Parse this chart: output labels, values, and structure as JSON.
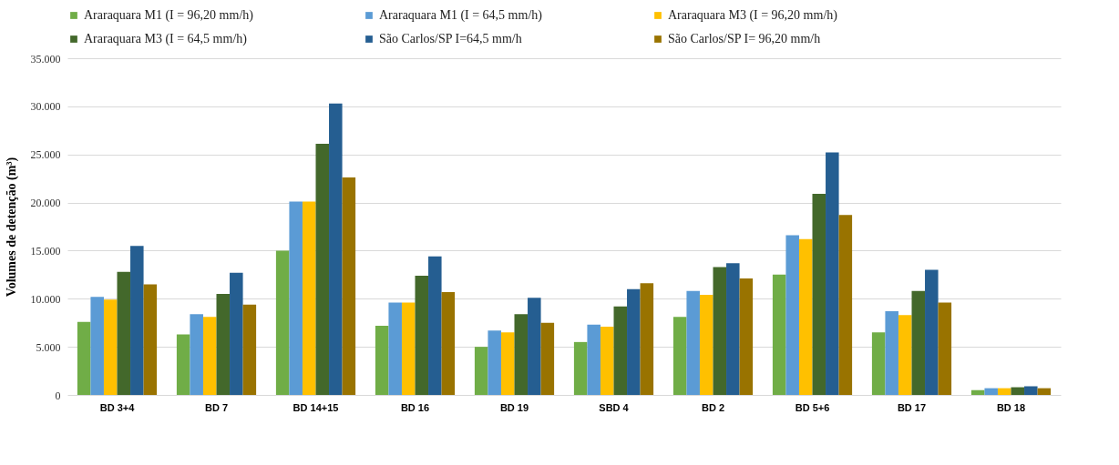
{
  "chart_data": {
    "type": "bar",
    "ylabel": "Volumes de detenção (m³)",
    "categories": [
      "BD 3+4",
      "BD 7",
      "BD 14+15",
      "BD 16",
      "BD 19",
      "SBD 4",
      "BD 2",
      "BD 5+6",
      "BD 17",
      "BD 18"
    ],
    "series": [
      {
        "name": "Araraquara M1 (I = 96,20 mm/h)",
        "color": "#70ad47",
        "values": [
          7600,
          6300,
          15000,
          7200,
          5000,
          5500,
          8100,
          12500,
          6500,
          500
        ]
      },
      {
        "name": "Araraquara M1 (I = 64,5 mm/h)",
        "color": "#5b9bd5",
        "values": [
          10200,
          8400,
          20100,
          9600,
          6700,
          7300,
          10800,
          16600,
          8700,
          700
        ]
      },
      {
        "name": "Araraquara M3 (I = 96,20 mm/h)",
        "color": "#ffc000",
        "values": [
          9900,
          8100,
          20100,
          9600,
          6500,
          7100,
          10400,
          16200,
          8300,
          700
        ]
      },
      {
        "name": "Araraquara M3 (I = 64,5 mm/h)",
        "color": "#43682b",
        "values": [
          12800,
          10500,
          26100,
          12400,
          8400,
          9200,
          13300,
          20900,
          10800,
          800
        ]
      },
      {
        "name": "São Carlos/SP I=64,5 mm/h",
        "color": "#255e91",
        "values": [
          15500,
          12700,
          30300,
          14400,
          10100,
          11000,
          13700,
          25200,
          13000,
          900
        ]
      },
      {
        "name": "São Carlos/SP I= 96,20 mm/h",
        "color": "#997300",
        "values": [
          11500,
          9400,
          22600,
          10700,
          7500,
          11600,
          12100,
          18700,
          9600,
          700
        ]
      }
    ],
    "ylim": [
      0,
      35000
    ],
    "yticks": [
      {
        "value": 0,
        "label": "0"
      },
      {
        "value": 5000,
        "label": "5.000"
      },
      {
        "value": 10000,
        "label": "10.000"
      },
      {
        "value": 15000,
        "label": "15.000"
      },
      {
        "value": 20000,
        "label": "20.000"
      },
      {
        "value": 25000,
        "label": "25.000"
      },
      {
        "value": 30000,
        "label": "30.000"
      },
      {
        "value": 35000,
        "label": "35.000"
      }
    ],
    "grid": "y",
    "legend": "top"
  }
}
